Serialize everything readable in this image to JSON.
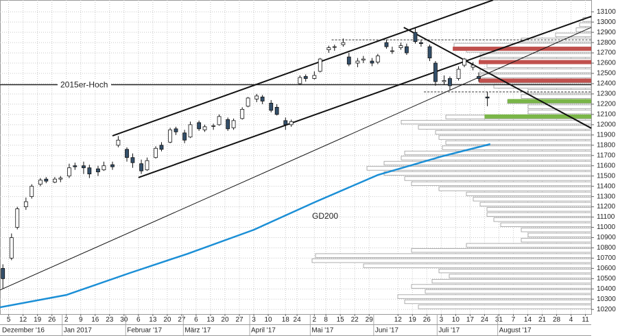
{
  "chart_data": {
    "type": "candlestick",
    "x": [
      "2016-12-01",
      "2016-12-06",
      "2016-12-08",
      "2016-12-13",
      "2016-12-15",
      "2016-12-20",
      "2016-12-22",
      "2016-12-27",
      "2016-12-29",
      "2017-01-03",
      "2017-01-05",
      "2017-01-10",
      "2017-01-12",
      "2017-01-17",
      "2017-01-19",
      "2017-01-24",
      "2017-01-26",
      "2017-01-31",
      "2017-02-02",
      "2017-02-07",
      "2017-02-09",
      "2017-02-14",
      "2017-02-16",
      "2017-02-21",
      "2017-02-23",
      "2017-02-28",
      "2017-03-02",
      "2017-03-07",
      "2017-03-09",
      "2017-03-14",
      "2017-03-16",
      "2017-03-21",
      "2017-03-23",
      "2017-03-28",
      "2017-03-30",
      "2017-04-04",
      "2017-04-06",
      "2017-04-11",
      "2017-04-13",
      "2017-04-18",
      "2017-04-20",
      "2017-04-25",
      "2017-04-27",
      "2017-05-02",
      "2017-05-04",
      "2017-05-09",
      "2017-05-11",
      "2017-05-16",
      "2017-05-18",
      "2017-05-23",
      "2017-05-25",
      "2017-05-30",
      "2017-06-01",
      "2017-06-06",
      "2017-06-08",
      "2017-06-13",
      "2017-06-15",
      "2017-06-20",
      "2017-06-22",
      "2017-06-27",
      "2017-06-29",
      "2017-07-04",
      "2017-07-06",
      "2017-07-11",
      "2017-07-13",
      "2017-07-18",
      "2017-07-20",
      "2017-07-25"
    ],
    "open": [
      10600,
      10700,
      11000,
      11200,
      11300,
      11420,
      11470,
      11440,
      11470,
      11500,
      11600,
      11600,
      11580,
      11570,
      11560,
      11610,
      11800,
      11760,
      11680,
      11620,
      11560,
      11680,
      11800,
      11830,
      11960,
      11920,
      11880,
      12020,
      11950,
      11990,
      12000,
      12050,
      11970,
      12060,
      12180,
      12250,
      12270,
      12210,
      12170,
      12040,
      12000,
      12400,
      12470,
      12450,
      12520,
      12730,
      12760,
      12780,
      12660,
      12600,
      12630,
      12620,
      12610,
      12800,
      12720,
      12750,
      12760,
      12900,
      12800,
      12760,
      12600,
      12420,
      12450,
      12450,
      12580,
      12560,
      12470,
      12270
    ],
    "high": [
      10640,
      10940,
      11200,
      11290,
      11420,
      11480,
      11490,
      11490,
      11500,
      11620,
      11630,
      11640,
      11610,
      11600,
      11640,
      11640,
      11890,
      11780,
      11720,
      11660,
      11680,
      11790,
      11830,
      11970,
      11980,
      11950,
      12030,
      12040,
      12000,
      12010,
      12100,
      12070,
      12060,
      12170,
      12270,
      12300,
      12290,
      12240,
      12200,
      12070,
      12050,
      12480,
      12490,
      12520,
      12650,
      12770,
      12780,
      12840,
      12700,
      12650,
      12670,
      12650,
      12690,
      12830,
      12760,
      12800,
      12790,
      12950,
      12830,
      12780,
      12620,
      12480,
      12470,
      12570,
      12650,
      12610,
      12510,
      12320
    ],
    "low": [
      10400,
      10680,
      10980,
      11170,
      11280,
      11400,
      11430,
      11430,
      11440,
      11480,
      11560,
      11520,
      11480,
      11500,
      11550,
      11560,
      11780,
      11640,
      11580,
      11520,
      11550,
      11670,
      11740,
      11820,
      11900,
      11820,
      11870,
      11940,
      11930,
      11950,
      11990,
      11940,
      11950,
      12050,
      12170,
      12220,
      12200,
      12120,
      12090,
      11950,
      11980,
      12390,
      12420,
      12440,
      12510,
      12700,
      12720,
      12760,
      12570,
      12560,
      12600,
      12570,
      12590,
      12740,
      12690,
      12730,
      12680,
      12790,
      12760,
      12620,
      12380,
      12390,
      12340,
      12430,
      12560,
      12530,
      12420,
      12180
    ],
    "close": [
      10500,
      10900,
      11180,
      11250,
      11400,
      11460,
      11450,
      11470,
      11480,
      11580,
      11590,
      11580,
      11520,
      11540,
      11600,
      11590,
      11850,
      11680,
      11630,
      11550,
      11650,
      11770,
      11760,
      11950,
      11930,
      11850,
      12000,
      11960,
      11980,
      11990,
      12080,
      11960,
      12040,
      12150,
      12260,
      12280,
      12230,
      12140,
      12100,
      12000,
      12030,
      12460,
      12450,
      12480,
      12640,
      12750,
      12760,
      12800,
      12590,
      12620,
      12640,
      12600,
      12670,
      12760,
      12720,
      12770,
      12700,
      12810,
      12790,
      12650,
      12420,
      12430,
      12380,
      12540,
      12640,
      12580,
      12450,
      12260
    ],
    "up_color": "#ffffff",
    "down_color": "#34506b",
    "xlim": [
      "2016-11-30",
      "2017-09-13"
    ],
    "ylim": [
      10155,
      13215
    ],
    "yticks": [
      10200,
      10300,
      10400,
      10500,
      10600,
      10700,
      10800,
      10900,
      11000,
      11100,
      11200,
      11300,
      11400,
      11500,
      11600,
      11700,
      11800,
      11900,
      12000,
      12100,
      12200,
      12300,
      12400,
      12500,
      12600,
      12700,
      12800,
      12900,
      13000,
      13100
    ],
    "xticks": [
      {
        "value": "2016-12-05",
        "label": "5"
      },
      {
        "value": "2016-12-12",
        "label": "12"
      },
      {
        "value": "2016-12-19",
        "label": "19"
      },
      {
        "value": "2016-12-26",
        "label": "26"
      },
      {
        "value": "2017-01-02",
        "label": "2"
      },
      {
        "value": "2017-01-09",
        "label": "9"
      },
      {
        "value": "2017-01-16",
        "label": "16"
      },
      {
        "value": "2017-01-23",
        "label": "23"
      },
      {
        "value": "2017-01-30",
        "label": "30"
      },
      {
        "value": "2017-02-06",
        "label": "6"
      },
      {
        "value": "2017-02-13",
        "label": "13"
      },
      {
        "value": "2017-02-20",
        "label": "20"
      },
      {
        "value": "2017-02-27",
        "label": "27"
      },
      {
        "value": "2017-03-06",
        "label": "6"
      },
      {
        "value": "2017-03-13",
        "label": "13"
      },
      {
        "value": "2017-03-20",
        "label": "20"
      },
      {
        "value": "2017-03-27",
        "label": "27"
      },
      {
        "value": "2017-04-03",
        "label": "3"
      },
      {
        "value": "2017-04-10",
        "label": "10"
      },
      {
        "value": "2017-04-18",
        "label": "18"
      },
      {
        "value": "2017-04-24",
        "label": "24"
      },
      {
        "value": "2017-05-02",
        "label": "2"
      },
      {
        "value": "2017-05-08",
        "label": "8"
      },
      {
        "value": "2017-05-15",
        "label": "15"
      },
      {
        "value": "2017-05-22",
        "label": "22"
      },
      {
        "value": "2017-05-29",
        "label": "29"
      },
      {
        "value": "2017-06-12",
        "label": "12"
      },
      {
        "value": "2017-06-19",
        "label": "19"
      },
      {
        "value": "2017-06-26",
        "label": "26"
      },
      {
        "value": "2017-07-03",
        "label": "3"
      },
      {
        "value": "2017-07-10",
        "label": "10"
      },
      {
        "value": "2017-07-17",
        "label": "17"
      },
      {
        "value": "2017-07-24",
        "label": "24"
      },
      {
        "value": "2017-07-31",
        "label": "31"
      },
      {
        "value": "2017-08-07",
        "label": "7"
      },
      {
        "value": "2017-08-14",
        "label": "14"
      },
      {
        "value": "2017-08-21",
        "label": "21"
      },
      {
        "value": "2017-08-28",
        "label": "28"
      },
      {
        "value": "2017-09-04",
        "label": "4"
      },
      {
        "value": "2017-09-11",
        "label": "11"
      }
    ],
    "months": [
      {
        "value": "2016-12-01",
        "label": "Dezember '16"
      },
      {
        "value": "2017-01-02",
        "label": "Jan 2017"
      },
      {
        "value": "2017-02-01",
        "label": "Februar '17"
      },
      {
        "value": "2017-03-01",
        "label": "März '17"
      },
      {
        "value": "2017-04-03",
        "label": "April '17"
      },
      {
        "value": "2017-05-02",
        "label": "Mai '17"
      },
      {
        "value": "2017-06-01",
        "label": "Juni '17"
      },
      {
        "value": "2017-07-03",
        "label": "Juli '17"
      },
      {
        "value": "2017-08-01",
        "label": "August '17"
      }
    ],
    "grid": true,
    "moving_average": {
      "name": "GD200",
      "color": "#1b8fd6",
      "x": [
        "2016-11-30",
        "2017-01-02",
        "2017-02-01",
        "2017-03-01",
        "2017-04-03",
        "2017-05-02",
        "2017-06-01",
        "2017-07-03",
        "2017-07-26"
      ],
      "values": [
        10221,
        10341,
        10555,
        10742,
        10976,
        11243,
        11510,
        11690,
        11811
      ]
    },
    "reference_line": {
      "label": "2015er-Hoch",
      "value": 12390
    },
    "trendlines": [
      {
        "start": {
          "x": "2017-01-24",
          "y": 11892
        },
        "end": {
          "x": "2017-07-27",
          "y": 13215
        },
        "width": 2
      },
      {
        "start": {
          "x": "2017-02-06",
          "y": 11485
        },
        "end": {
          "x": "2017-09-13",
          "y": 13055
        },
        "width": 2
      },
      {
        "start": {
          "x": "2016-11-30",
          "y": 10389
        },
        "end": {
          "x": "2017-09-13",
          "y": 12948
        },
        "width": 1
      },
      {
        "start": {
          "x": "2017-06-14",
          "y": 12948
        },
        "end": {
          "x": "2017-09-13",
          "y": 11966
        },
        "width": 2
      }
    ],
    "dashed_levels": [
      {
        "value": 12827,
        "start": "2017-05-10"
      },
      {
        "value": 12320,
        "start": "2017-06-23"
      }
    ],
    "zones": [
      {
        "value": 12740,
        "start": "2017-07-07",
        "color": "#c0504d"
      },
      {
        "value": 12610,
        "start": "2017-07-20",
        "color": "#c0504d"
      },
      {
        "value": 12430,
        "start": "2017-07-20",
        "color": "#c0504d"
      },
      {
        "value": 12230,
        "start": "2017-08-03",
        "color": "#7ab648"
      },
      {
        "value": 12080,
        "start": "2017-07-24",
        "color": "#7ab648"
      }
    ],
    "volume_profile": {
      "levels": [
        13000,
        12950,
        12900,
        12850,
        12800,
        12750,
        12700,
        12650,
        12600,
        12550,
        12500,
        12450,
        12400,
        12350,
        12300,
        12250,
        12200,
        12150,
        12100,
        12050,
        12000,
        11950,
        11900,
        11850,
        11800,
        11750,
        11700,
        11650,
        11600,
        11550,
        11500,
        11450,
        11400,
        11350,
        11300,
        11250,
        11200,
        11150,
        11100,
        11050,
        11000,
        10950,
        10900,
        10850,
        10800,
        10750,
        10700,
        10650,
        10600,
        10550,
        10500,
        10450,
        10400,
        10350,
        10300,
        10250,
        10200
      ],
      "values": [
        12,
        17,
        22,
        52,
        102,
        200,
        182,
        162,
        162,
        152,
        162,
        162,
        162,
        142,
        92,
        102,
        122,
        92,
        92,
        212,
        277,
        252,
        227,
        222,
        212,
        217,
        272,
        277,
        302,
        327,
        302,
        272,
        262,
        222,
        182,
        172,
        162,
        152,
        152,
        142,
        132,
        102,
        92,
        102,
        182,
        262,
        402,
        407,
        332,
        222,
        207,
        232,
        262,
        242,
        282,
        272,
        252
      ]
    }
  }
}
